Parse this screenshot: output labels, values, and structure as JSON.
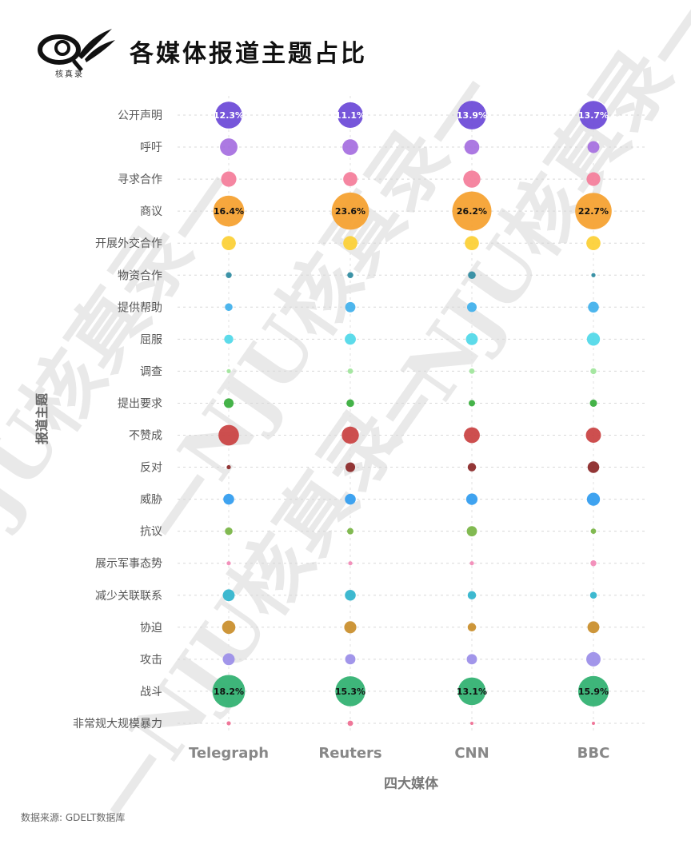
{
  "header": {
    "logo_label": "核真录",
    "title": "各媒体报道主题占比"
  },
  "watermark": "—NJU核真录—",
  "source_note": "数据来源: GDELT数据库",
  "chart_data": {
    "type": "bubble",
    "title": "各媒体报道主题占比",
    "xlabel": "四大媒体",
    "ylabel": "报道主题",
    "categories": [
      "Telegraph",
      "Reuters",
      "CNN",
      "BBC"
    ],
    "topics": [
      "公开声明",
      "呼吁",
      "寻求合作",
      "商议",
      "开展外交合作",
      "物资合作",
      "提供帮助",
      "屈服",
      "调查",
      "提出要求",
      "不赞成",
      "反对",
      "威胁",
      "抗议",
      "展示军事态势",
      "减少关联联系",
      "协迫",
      "攻击",
      "战斗",
      "非常规大规模暴力"
    ],
    "colors": [
      "#6a48d7",
      "#a56ee0",
      "#f47c99",
      "#f5a02d",
      "#fccf33",
      "#2c8aa0",
      "#3fb0ec",
      "#4fd8e8",
      "#9ee59a",
      "#35ad3a",
      "#c94040",
      "#8a2626",
      "#2f9bef",
      "#77b443",
      "#f289b6",
      "#2eb3cc",
      "#c98d29",
      "#9a8de8",
      "#2eb06f",
      "#ef6d91"
    ],
    "values": [
      [
        12.3,
        5.2,
        4.0,
        16.4,
        3.4,
        0.6,
        1.0,
        1.4,
        0.3,
        1.6,
        7.2,
        0.3,
        2.0,
        1.0,
        0.3,
        2.4,
        3.0,
        2.4,
        18.2,
        0.3
      ],
      [
        11.1,
        4.2,
        3.4,
        23.6,
        3.4,
        0.6,
        1.8,
        2.1,
        0.5,
        1.0,
        5.0,
        1.6,
        2.0,
        0.7,
        0.3,
        2.0,
        2.5,
        1.8,
        15.3,
        0.5
      ],
      [
        13.9,
        3.8,
        5.0,
        26.2,
        3.4,
        1.0,
        1.6,
        2.4,
        0.5,
        0.7,
        4.3,
        1.2,
        2.2,
        1.8,
        0.3,
        1.2,
        1.2,
        1.8,
        13.1,
        0.1
      ],
      [
        13.7,
        2.4,
        3.2,
        22.7,
        3.4,
        0.3,
        2.0,
        2.9,
        0.6,
        0.9,
        3.9,
        2.3,
        2.9,
        0.5,
        0.6,
        0.8,
        2.4,
        3.5,
        15.9,
        0.1
      ]
    ],
    "labeled_topics": [
      "公开声明",
      "商议",
      "战斗"
    ],
    "value_labels": [
      [
        "12.3%",
        "16.4%",
        "18.2%"
      ],
      [
        "11.1%",
        "23.6%",
        "15.3%"
      ],
      [
        "13.9%",
        "26.2%",
        "13.1%"
      ],
      [
        "13.7%",
        "22.7%",
        "15.9%"
      ]
    ],
    "label_colors": [
      "#ffffff",
      "#111111",
      "#111111"
    ],
    "grid": true,
    "legend": "none"
  }
}
